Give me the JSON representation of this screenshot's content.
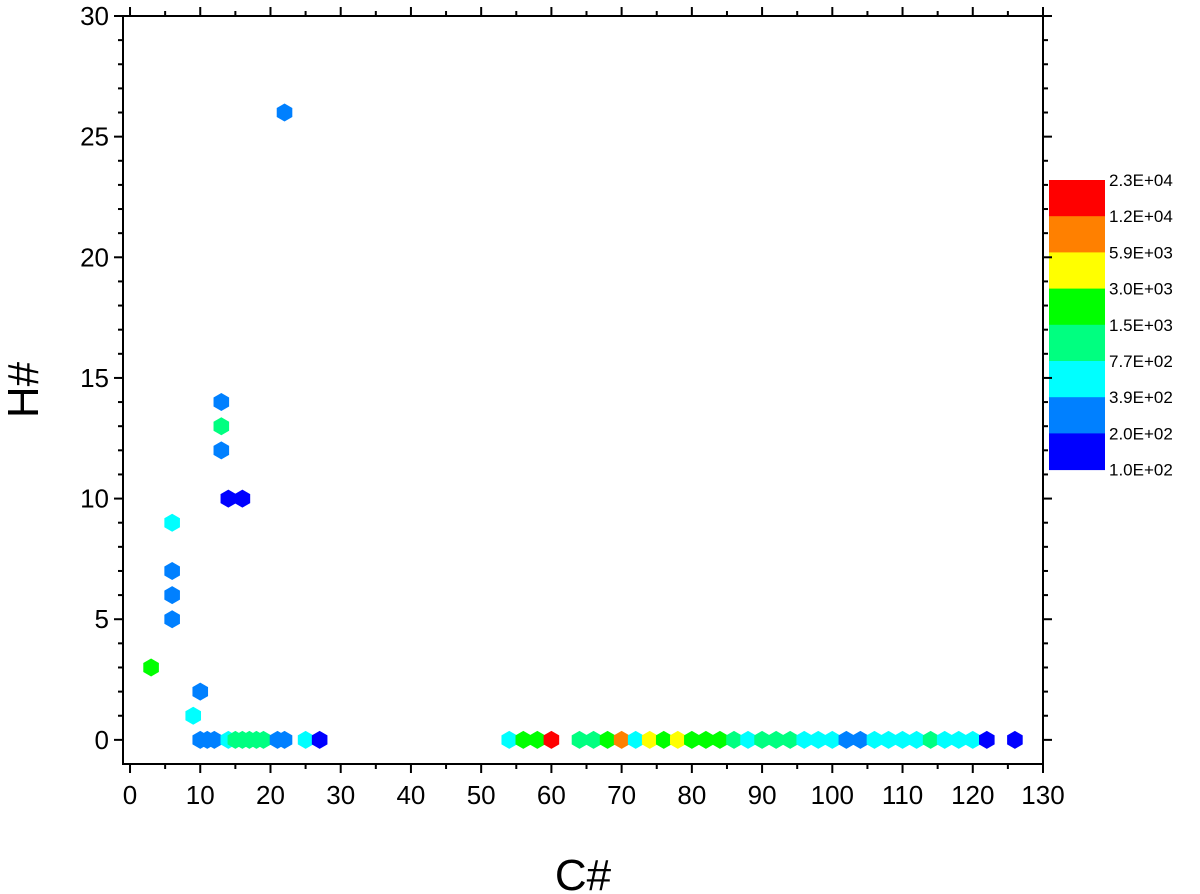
{
  "chart_data": {
    "type": "scatter",
    "title": "",
    "xlabel": "C#",
    "ylabel": "H#",
    "xlim": [
      -1,
      130
    ],
    "ylim": [
      -1,
      30
    ],
    "xticks": [
      "0",
      "10",
      "20",
      "30",
      "40",
      "50",
      "60",
      "70",
      "80",
      "90",
      "100",
      "110",
      "120",
      "130"
    ],
    "yticks": [
      "0",
      "5",
      "10",
      "15",
      "20",
      "25",
      "30"
    ],
    "grid": false,
    "legend": {
      "placement": "right",
      "labels": [
        "2.3E+04",
        "1.2E+04",
        "5.9E+03",
        "3.0E+03",
        "1.5E+03",
        "7.7E+02",
        "3.9E+02",
        "2.0E+02",
        "1.0E+02"
      ],
      "colors": [
        "#ff0000",
        "#ff8000",
        "#ffff00",
        "#00ff00",
        "#00ff80",
        "#00ffff",
        "#0080ff",
        "#0000ff"
      ]
    },
    "points": [
      {
        "x": 3,
        "y": 3,
        "color": "#00ff00"
      },
      {
        "x": 6,
        "y": 9,
        "color": "#00ffff"
      },
      {
        "x": 6,
        "y": 7,
        "color": "#0080ff"
      },
      {
        "x": 6,
        "y": 6,
        "color": "#0080ff"
      },
      {
        "x": 6,
        "y": 5,
        "color": "#0080ff"
      },
      {
        "x": 9,
        "y": 1,
        "color": "#00ffff"
      },
      {
        "x": 10,
        "y": 2,
        "color": "#0080ff"
      },
      {
        "x": 13,
        "y": 14,
        "color": "#0080ff"
      },
      {
        "x": 13,
        "y": 13,
        "color": "#00ff80"
      },
      {
        "x": 13,
        "y": 12,
        "color": "#0080ff"
      },
      {
        "x": 14,
        "y": 10,
        "color": "#0000ff"
      },
      {
        "x": 16,
        "y": 10,
        "color": "#0000ff"
      },
      {
        "x": 22,
        "y": 26,
        "color": "#0080ff"
      },
      {
        "x": 10,
        "y": 0,
        "color": "#0080ff"
      },
      {
        "x": 11,
        "y": 0,
        "color": "#0080ff"
      },
      {
        "x": 12,
        "y": 0,
        "color": "#0080ff"
      },
      {
        "x": 14,
        "y": 0,
        "color": "#00ffff"
      },
      {
        "x": 15,
        "y": 0,
        "color": "#00ff80"
      },
      {
        "x": 16,
        "y": 0,
        "color": "#00ff80"
      },
      {
        "x": 17,
        "y": 0,
        "color": "#00ff80"
      },
      {
        "x": 18,
        "y": 0,
        "color": "#00ff80"
      },
      {
        "x": 19,
        "y": 0,
        "color": "#00ff80"
      },
      {
        "x": 21,
        "y": 0,
        "color": "#0080ff"
      },
      {
        "x": 22,
        "y": 0,
        "color": "#0080ff"
      },
      {
        "x": 25,
        "y": 0,
        "color": "#00ffff"
      },
      {
        "x": 27,
        "y": 0,
        "color": "#0000ff"
      },
      {
        "x": 54,
        "y": 0,
        "color": "#00ffff"
      },
      {
        "x": 56,
        "y": 0,
        "color": "#00ff00"
      },
      {
        "x": 58,
        "y": 0,
        "color": "#00ff00"
      },
      {
        "x": 60,
        "y": 0,
        "color": "#ff0000"
      },
      {
        "x": 64,
        "y": 0,
        "color": "#00ff80"
      },
      {
        "x": 66,
        "y": 0,
        "color": "#00ff80"
      },
      {
        "x": 68,
        "y": 0,
        "color": "#00ff00"
      },
      {
        "x": 70,
        "y": 0,
        "color": "#ff8000"
      },
      {
        "x": 72,
        "y": 0,
        "color": "#00ffff"
      },
      {
        "x": 74,
        "y": 0,
        "color": "#ffff00"
      },
      {
        "x": 76,
        "y": 0,
        "color": "#00ff00"
      },
      {
        "x": 78,
        "y": 0,
        "color": "#ffff00"
      },
      {
        "x": 80,
        "y": 0,
        "color": "#00ff00"
      },
      {
        "x": 82,
        "y": 0,
        "color": "#00ff00"
      },
      {
        "x": 84,
        "y": 0,
        "color": "#00ff00"
      },
      {
        "x": 86,
        "y": 0,
        "color": "#00ff80"
      },
      {
        "x": 88,
        "y": 0,
        "color": "#00ffff"
      },
      {
        "x": 90,
        "y": 0,
        "color": "#00ff80"
      },
      {
        "x": 92,
        "y": 0,
        "color": "#00ff80"
      },
      {
        "x": 94,
        "y": 0,
        "color": "#00ff80"
      },
      {
        "x": 96,
        "y": 0,
        "color": "#00ffff"
      },
      {
        "x": 98,
        "y": 0,
        "color": "#00ffff"
      },
      {
        "x": 100,
        "y": 0,
        "color": "#00ffff"
      },
      {
        "x": 102,
        "y": 0,
        "color": "#0080ff"
      },
      {
        "x": 104,
        "y": 0,
        "color": "#0080ff"
      },
      {
        "x": 106,
        "y": 0,
        "color": "#00ffff"
      },
      {
        "x": 108,
        "y": 0,
        "color": "#00ffff"
      },
      {
        "x": 110,
        "y": 0,
        "color": "#00ffff"
      },
      {
        "x": 112,
        "y": 0,
        "color": "#00ffff"
      },
      {
        "x": 114,
        "y": 0,
        "color": "#00ff80"
      },
      {
        "x": 116,
        "y": 0,
        "color": "#00ffff"
      },
      {
        "x": 118,
        "y": 0,
        "color": "#00ffff"
      },
      {
        "x": 120,
        "y": 0,
        "color": "#00ffff"
      },
      {
        "x": 122,
        "y": 0,
        "color": "#0000ff"
      },
      {
        "x": 126,
        "y": 0,
        "color": "#0000ff"
      }
    ]
  }
}
